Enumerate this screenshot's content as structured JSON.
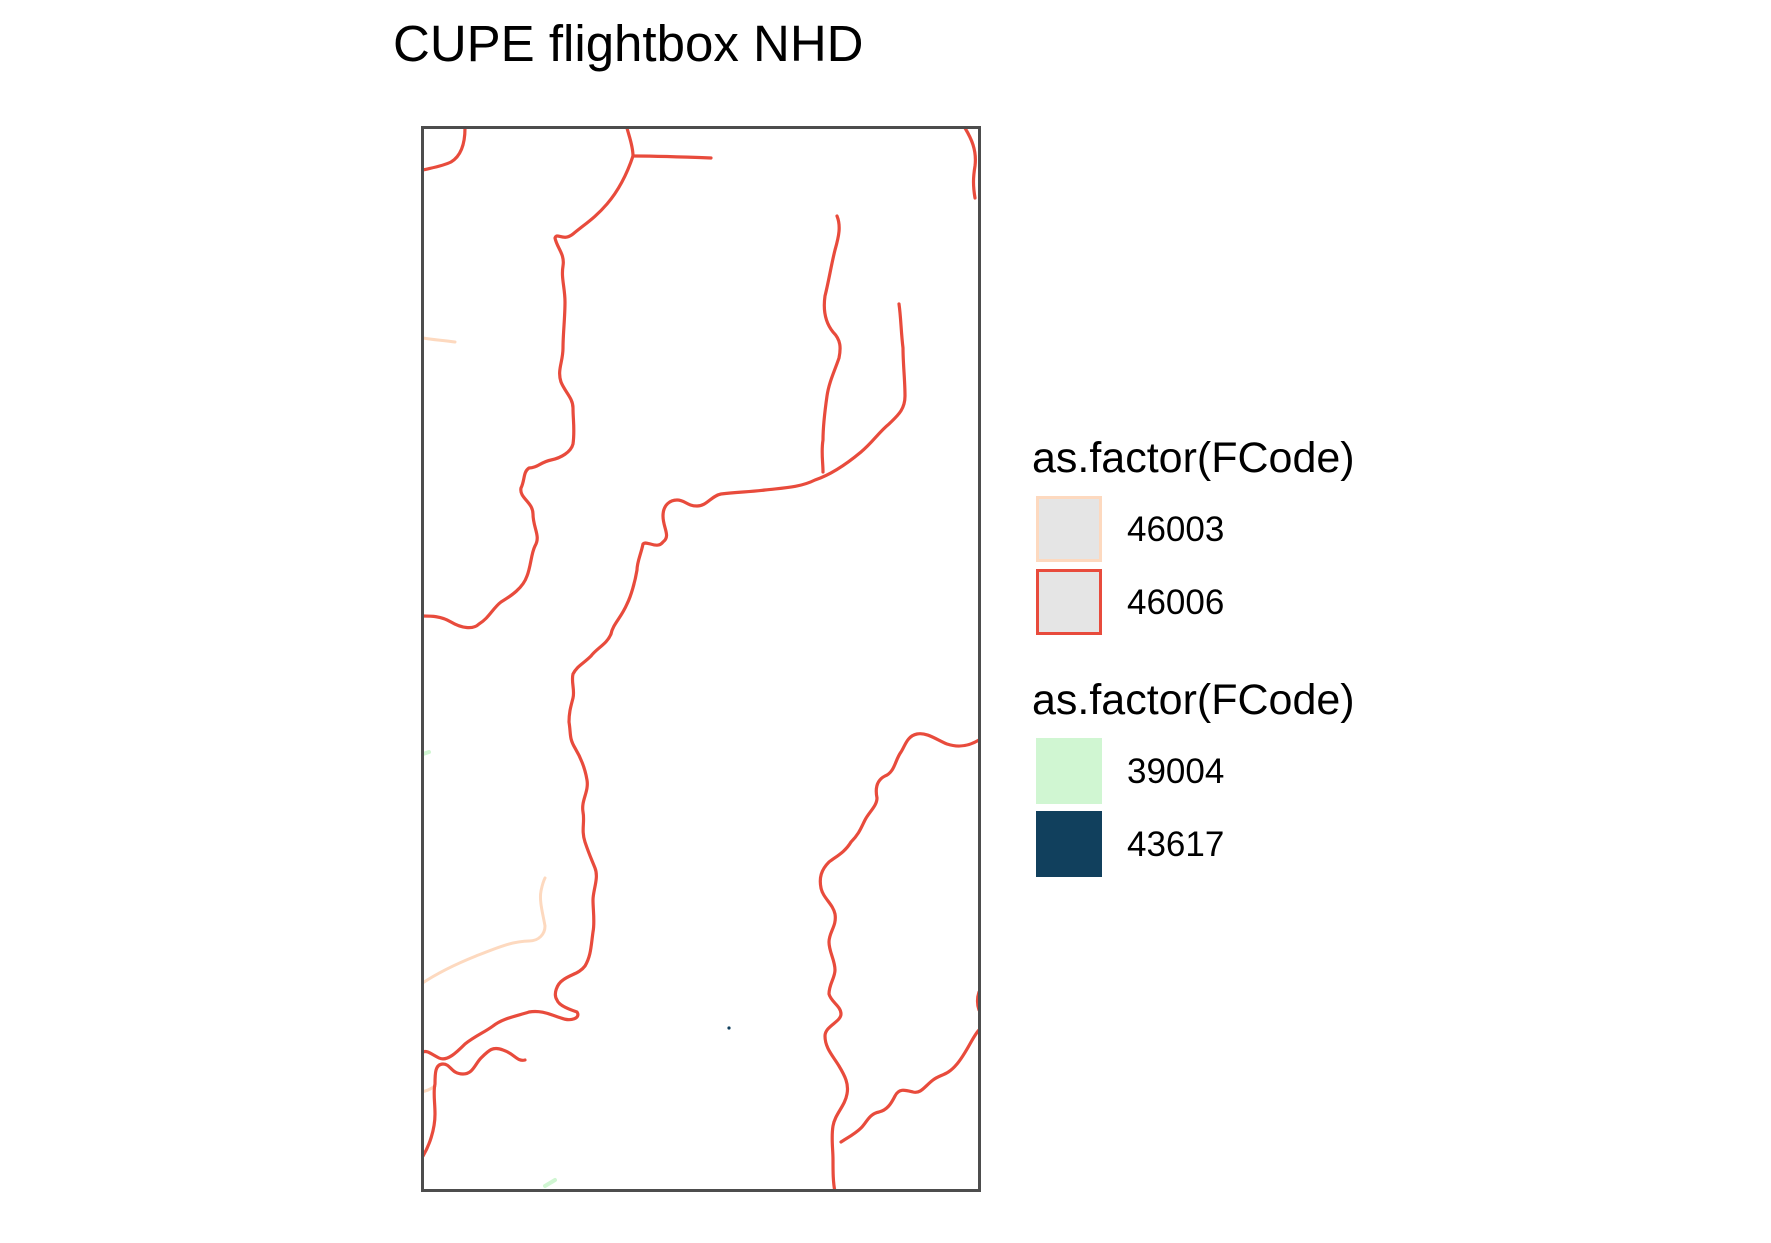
{
  "map": {
    "title": "CUPE flightbox NHD",
    "frame_color": "#4d4d4d",
    "background": "#ffffff"
  },
  "legends": [
    {
      "title": "as.factor(FCode)",
      "kind": "line",
      "items": [
        {
          "label": "46003",
          "color": "#fdd9bf"
        },
        {
          "label": "46006",
          "color": "#e84b3c"
        }
      ]
    },
    {
      "title": "as.factor(FCode)",
      "kind": "fill",
      "items": [
        {
          "label": "39004",
          "color": "#d0f6d2"
        },
        {
          "label": "43617",
          "color": "#11405d"
        }
      ]
    }
  ]
}
